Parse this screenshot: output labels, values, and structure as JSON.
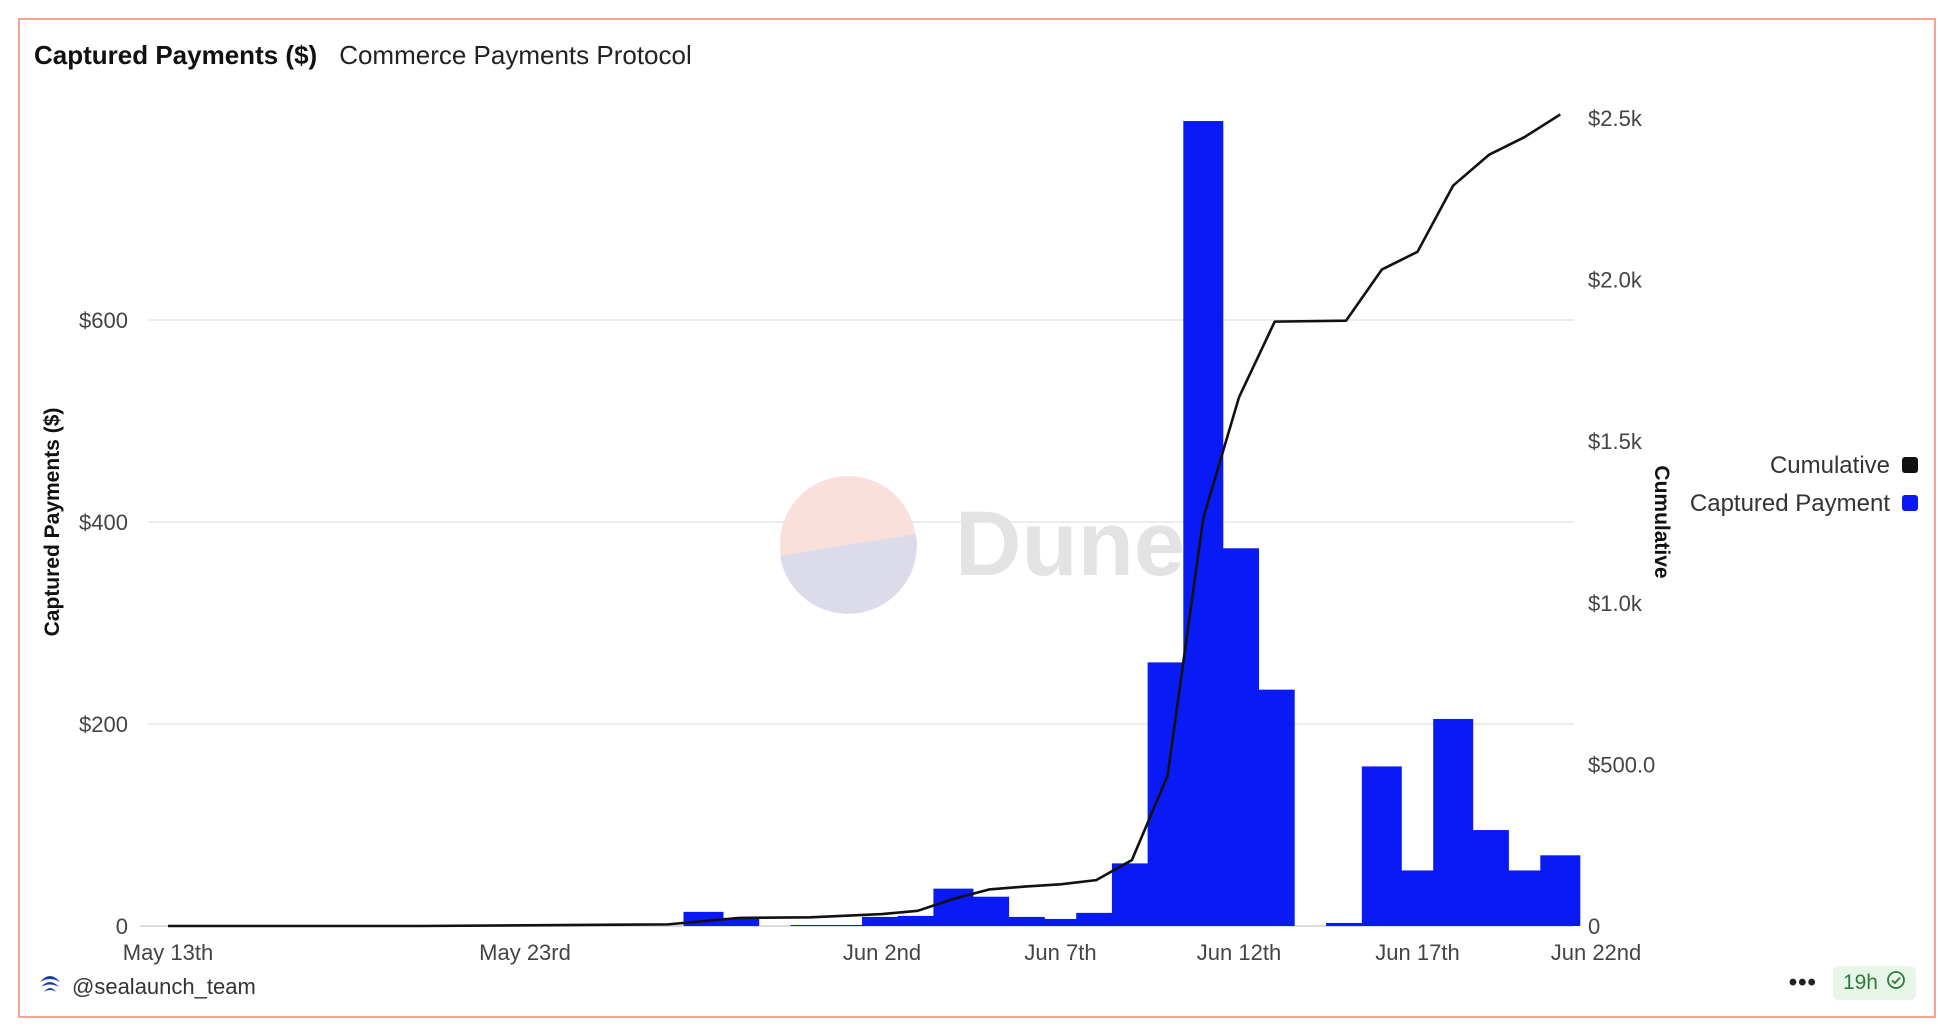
{
  "header": {
    "title": "Captured Payments ($)",
    "subtitle": "Commerce Payments Protocol"
  },
  "watermark": {
    "text": "Dune"
  },
  "footer": {
    "author": "@sealaunch_team",
    "more_label": "•••",
    "age_badge": "19h"
  },
  "colors": {
    "bar": "#0a1af5",
    "line": "#111111",
    "border": "#f4a592",
    "badge_bg": "#e7f6e9",
    "badge_text": "#2e7d3a"
  },
  "chart_data": {
    "type": "bar+line",
    "title": "Captured Payments ($)",
    "ylabel": "Captured Payments ($)",
    "y2label": "Cumulative",
    "ylim": [
      0,
      800
    ],
    "y2lim": [
      0,
      2500
    ],
    "x_ticks": [
      "May 13th",
      "May 23rd",
      "Jun 2nd",
      "Jun 7th",
      "Jun 12th",
      "Jun 17th",
      "Jun 22nd"
    ],
    "y_ticks": [
      "0",
      "$200",
      "$400",
      "$600"
    ],
    "y2_ticks": [
      "0",
      "$500.0",
      "$1.0k",
      "$1.5k",
      "$2.0k",
      "$2.5k"
    ],
    "legend": {
      "position": "right",
      "entries": [
        "Cumulative",
        "Captured Payment"
      ]
    },
    "grid": true,
    "x_range": [
      "2025-05-13",
      "2025-06-22"
    ],
    "series": [
      {
        "name": "Captured Payment",
        "kind": "bar",
        "points": [
          [
            "2025-05-28",
            14
          ],
          [
            "2025-05-29",
            8
          ],
          [
            "2025-05-31",
            1
          ],
          [
            "2025-06-01",
            1
          ],
          [
            "2025-06-02",
            9
          ],
          [
            "2025-06-03",
            10
          ],
          [
            "2025-06-04",
            37
          ],
          [
            "2025-06-05",
            29
          ],
          [
            "2025-06-06",
            9
          ],
          [
            "2025-06-07",
            7
          ],
          [
            "2025-06-08",
            13
          ],
          [
            "2025-06-09",
            62
          ],
          [
            "2025-06-10",
            261
          ],
          [
            "2025-06-11",
            797
          ],
          [
            "2025-06-12",
            374
          ],
          [
            "2025-06-13",
            234
          ],
          [
            "2025-06-15",
            3
          ],
          [
            "2025-06-16",
            158
          ],
          [
            "2025-06-17",
            55
          ],
          [
            "2025-06-18",
            205
          ],
          [
            "2025-06-19",
            95
          ],
          [
            "2025-06-20",
            55
          ],
          [
            "2025-06-21",
            70
          ]
        ]
      },
      {
        "name": "Cumulative",
        "kind": "line",
        "points": [
          [
            "2025-05-13",
            0
          ],
          [
            "2025-05-20",
            0
          ],
          [
            "2025-05-27",
            5
          ],
          [
            "2025-05-29",
            25
          ],
          [
            "2025-05-31",
            27
          ],
          [
            "2025-06-02",
            37
          ],
          [
            "2025-06-03",
            47
          ],
          [
            "2025-06-04",
            84
          ],
          [
            "2025-06-05",
            113
          ],
          [
            "2025-06-06",
            122
          ],
          [
            "2025-06-07",
            129
          ],
          [
            "2025-06-08",
            142
          ],
          [
            "2025-06-09",
            204
          ],
          [
            "2025-06-10",
            465
          ],
          [
            "2025-06-11",
            1262
          ],
          [
            "2025-06-12",
            1636
          ],
          [
            "2025-06-13",
            1870
          ],
          [
            "2025-06-15",
            1873
          ],
          [
            "2025-06-16",
            2031
          ],
          [
            "2025-06-17",
            2086
          ],
          [
            "2025-06-18",
            2291
          ],
          [
            "2025-06-19",
            2386
          ],
          [
            "2025-06-20",
            2441
          ],
          [
            "2025-06-21",
            2511
          ]
        ]
      }
    ]
  }
}
